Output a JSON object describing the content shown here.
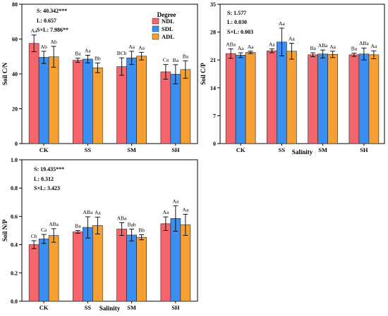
{
  "legend": {
    "title": "Degree",
    "entries": [
      {
        "name": "NDL",
        "color": "#f4666b"
      },
      {
        "name": "SDL",
        "color": "#3b8ff1"
      },
      {
        "name": "ADL",
        "color": "#f6a033"
      }
    ]
  },
  "chart_data": [
    {
      "type": "bar",
      "title": "",
      "xlabel": "",
      "ylabel": "Soil C/N",
      "ylim": [
        0,
        80
      ],
      "yticks": [
        0,
        20,
        40,
        60,
        80
      ],
      "categories": [
        "CK",
        "SS",
        "SM",
        "SH"
      ],
      "stats": [
        "S: 40.342***",
        "L: 0.657",
        "S×L: 7.986**"
      ],
      "legend_position": "top-right",
      "series": [
        {
          "name": "NDL",
          "values": [
            57.5,
            47.8,
            44.2,
            41.2
          ],
          "errors": [
            4.8,
            1.2,
            5.0,
            4.2
          ],
          "labels": [
            "Aa",
            "Ba",
            "BCb",
            "Ca"
          ]
        },
        {
          "name": "SDL",
          "values": [
            49.5,
            48.5,
            49.2,
            39.8
          ],
          "errors": [
            3.5,
            2.2,
            3.8,
            5.5
          ],
          "labels": [
            "Ab",
            "Aa",
            "Aa",
            "Ba"
          ]
        },
        {
          "name": "ADL",
          "values": [
            49.8,
            43.5,
            50.2,
            42.5
          ],
          "errors": [
            6.0,
            2.8,
            2.2,
            5.0
          ],
          "labels": [
            "Ab",
            "Bb",
            "Aa",
            "Ba"
          ]
        }
      ]
    },
    {
      "type": "bar",
      "title": "",
      "xlabel": "Salinity",
      "ylabel": "Soil C/P",
      "ylim": [
        0,
        35
      ],
      "yticks": [
        0,
        7,
        14,
        21,
        28,
        35
      ],
      "categories": [
        "CK",
        "SS",
        "SM",
        "SH"
      ],
      "stats": [
        "S: 1.577",
        "L: 0.030",
        "S×L: 0.003"
      ],
      "series": [
        {
          "name": "NDL",
          "values": [
            22.6,
            23.3,
            22.3,
            22.3
          ],
          "errors": [
            1.2,
            0.5,
            0.5,
            0.4
          ],
          "labels": [
            "ABa",
            "Aa",
            "Ba",
            "Ba"
          ]
        },
        {
          "name": "SDL",
          "values": [
            22.2,
            25.5,
            22.5,
            22.5
          ],
          "errors": [
            0.6,
            3.5,
            1.0,
            1.5
          ],
          "labels": [
            "Aa",
            "Aa",
            "ABa",
            "ABa"
          ]
        },
        {
          "name": "ADL",
          "values": [
            22.9,
            23.2,
            22.4,
            22.3
          ],
          "errors": [
            0.3,
            2.0,
            0.8,
            1.0
          ],
          "labels": [
            "Aa",
            "Aa",
            "Aa",
            "Aa"
          ]
        }
      ]
    },
    {
      "type": "bar",
      "title": "",
      "xlabel": "Salinity",
      "ylabel": "Soil N/P",
      "ylim": [
        0,
        1.0
      ],
      "yticks": [
        0,
        0.2,
        0.4,
        0.6,
        0.8,
        1.0
      ],
      "categories": [
        "CK",
        "SS",
        "SM",
        "SH"
      ],
      "stats": [
        "S: 19.435***",
        "L: 0.312",
        "S×L: 3.423"
      ],
      "series": [
        {
          "name": "NDL",
          "values": [
            0.4,
            0.49,
            0.51,
            0.548
          ],
          "errors": [
            0.028,
            0.01,
            0.045,
            0.048
          ],
          "labels": [
            "Cb",
            "Ba",
            "ABa",
            "Aa"
          ]
        },
        {
          "name": "SDL",
          "values": [
            0.44,
            0.522,
            0.468,
            0.585
          ],
          "errors": [
            0.032,
            0.075,
            0.042,
            0.09
          ],
          "labels": [
            "Ca",
            "ABa",
            "Bab",
            "Aa"
          ]
        },
        {
          "name": "ADL",
          "values": [
            0.465,
            0.535,
            0.452,
            0.54
          ],
          "errors": [
            0.048,
            0.06,
            0.018,
            0.075
          ],
          "labels": [
            "ABa",
            "Aa",
            "Bb",
            "Aa"
          ]
        }
      ]
    }
  ]
}
